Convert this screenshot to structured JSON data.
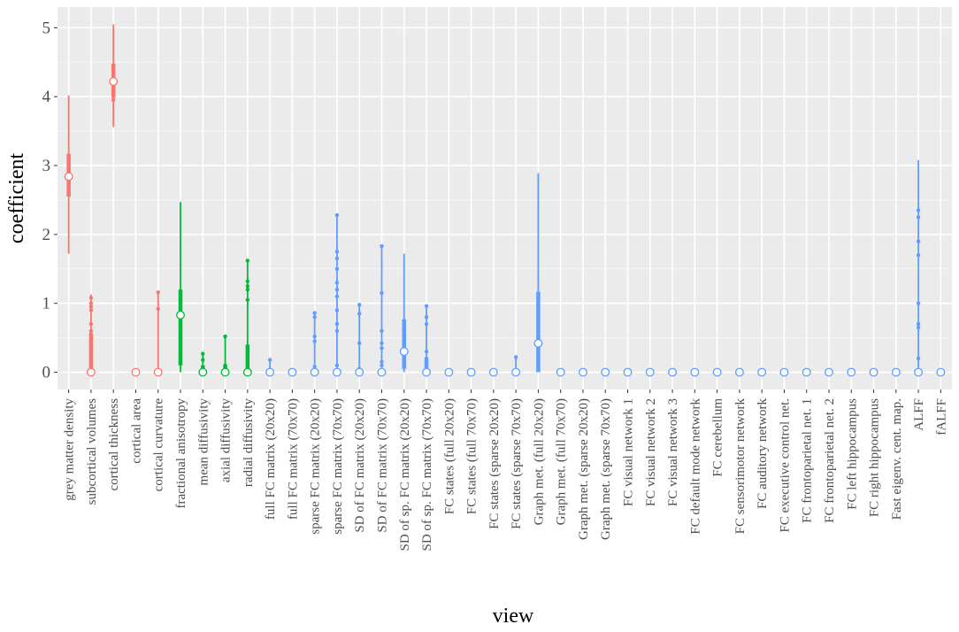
{
  "chart_data": {
    "type": "pointrange",
    "x_label": "view",
    "y_label": "coefficient",
    "ylim": [
      -0.25,
      5.3
    ],
    "yticks": [
      0,
      1,
      2,
      3,
      4,
      5
    ],
    "grid": true,
    "categories": [
      "grey matter density",
      "subcortical volumes",
      "cortical thickness",
      "cortical area",
      "cortical curvature",
      "fractional anisotropy",
      "mean diffusivity",
      "axial diffusivity",
      "radial diffusivity",
      "full FC matrix (20x20)",
      "full FC matrix (70x70)",
      "sparse FC matrix (20x20)",
      "sparse FC matrix (70x70)",
      "SD of FC matrix (20x20)",
      "SD of FC matrix (70x70)",
      "SD of sp. FC matrix (20x20)",
      "SD of sp. FC matrix (70x70)",
      "FC states (full 20x20)",
      "FC states (full 70x70)",
      "FC states (sparse 20x20)",
      "FC states (sparse 70x70)",
      "Graph met. (full 20x20)",
      "Graph met. (full 70x70)",
      "Graph met. (sparse 20x20)",
      "Graph met. (sparse 70x70)",
      "FC visual network 1",
      "FC visual network 2",
      "FC visual network 3",
      "FC default mode network",
      "FC cerebellum",
      "FC sensorimotor network",
      "FC auditory network",
      "FC executive control net.",
      "FC frontoparietal net. 1",
      "FC frontoparietal net. 2",
      "FC left hippocampus",
      "FC right hippocampus",
      "Fast eigenv. cent. map.",
      "ALFF",
      "fALFF"
    ],
    "ranges": [
      {
        "color": "#F8766D",
        "min": 1.72,
        "q1": 2.55,
        "median": 2.84,
        "q3": 3.17,
        "max": 4.02,
        "dots": [
          2.6,
          2.75,
          2.9,
          3.0,
          3.1
        ]
      },
      {
        "color": "#F8766D",
        "min": 0,
        "q1": 0,
        "median": 0,
        "q3": 0.55,
        "max": 1.13,
        "dots": [
          0.05,
          0.15,
          0.35,
          0.45,
          0.55,
          0.6,
          0.7,
          0.9,
          0.95,
          1.0,
          1.08
        ]
      },
      {
        "color": "#F8766D",
        "min": 3.56,
        "q1": 3.98,
        "median": 4.22,
        "q3": 4.48,
        "max": 5.05,
        "dots": [
          3.95,
          4.05,
          4.15,
          4.35,
          4.45
        ]
      },
      {
        "color": "#F8766D",
        "min": 0,
        "q1": 0,
        "median": 0,
        "q3": 0,
        "max": 0,
        "dots": []
      },
      {
        "color": "#F8766D",
        "min": 0,
        "q1": 0,
        "median": 0,
        "q3": 0,
        "max": 1.16,
        "dots": [
          0.92,
          1.16
        ]
      },
      {
        "color": "#00BA38",
        "min": 0,
        "q1": 0.1,
        "median": 0.83,
        "q3": 1.2,
        "max": 2.47,
        "dots": []
      },
      {
        "color": "#00BA38",
        "min": 0,
        "q1": 0,
        "median": 0,
        "q3": 0.1,
        "max": 0.27,
        "dots": [
          0.18,
          0.27
        ]
      },
      {
        "color": "#00BA38",
        "min": 0,
        "q1": 0,
        "median": 0,
        "q3": 0.1,
        "max": 0.52,
        "dots": [
          0.1,
          0.52
        ]
      },
      {
        "color": "#00BA38",
        "min": 0,
        "q1": 0,
        "median": 0,
        "q3": 0.4,
        "max": 1.62,
        "dots": [
          1.05,
          1.2,
          1.25,
          1.32,
          1.62
        ]
      },
      {
        "color": "#619CFF",
        "min": 0,
        "q1": 0,
        "median": 0,
        "q3": 0,
        "max": 0.18,
        "dots": [
          0.18
        ]
      },
      {
        "color": "#619CFF",
        "min": 0,
        "q1": 0,
        "median": 0,
        "q3": 0,
        "max": 0,
        "dots": []
      },
      {
        "color": "#619CFF",
        "min": 0,
        "q1": 0,
        "median": 0,
        "q3": 0,
        "max": 0.86,
        "dots": [
          0.08,
          0.45,
          0.52,
          0.8,
          0.86
        ]
      },
      {
        "color": "#619CFF",
        "min": 0,
        "q1": 0,
        "median": 0,
        "q3": 0,
        "max": 2.28,
        "dots": [
          0.1,
          0.6,
          0.7,
          0.9,
          1.1,
          1.2,
          1.3,
          1.5,
          1.65,
          1.75,
          2.28
        ]
      },
      {
        "color": "#619CFF",
        "min": 0,
        "q1": 0,
        "median": 0,
        "q3": 0,
        "max": 0.98,
        "dots": [
          0.05,
          0.42,
          0.85,
          0.98
        ]
      },
      {
        "color": "#619CFF",
        "min": 0,
        "q1": 0,
        "median": 0,
        "q3": 0,
        "max": 1.83,
        "dots": [
          0.1,
          0.15,
          0.35,
          0.42,
          0.6,
          1.15,
          1.83
        ]
      },
      {
        "color": "#619CFF",
        "min": 0,
        "q1": 0.05,
        "median": 0.3,
        "q3": 0.77,
        "max": 1.72,
        "dots": []
      },
      {
        "color": "#619CFF",
        "min": 0,
        "q1": 0,
        "median": 0,
        "q3": 0.2,
        "max": 0.96,
        "dots": [
          0.1,
          0.2,
          0.3,
          0.7,
          0.8,
          0.96
        ]
      },
      {
        "color": "#619CFF",
        "min": 0,
        "q1": 0,
        "median": 0,
        "q3": 0,
        "max": 0,
        "dots": []
      },
      {
        "color": "#619CFF",
        "min": 0,
        "q1": 0,
        "median": 0,
        "q3": 0,
        "max": 0,
        "dots": []
      },
      {
        "color": "#619CFF",
        "min": 0,
        "q1": 0,
        "median": 0,
        "q3": 0,
        "max": 0,
        "dots": []
      },
      {
        "color": "#619CFF",
        "min": 0,
        "q1": 0,
        "median": 0,
        "q3": 0,
        "max": 0.22,
        "dots": [
          0.22
        ]
      },
      {
        "color": "#619CFF",
        "min": 0,
        "q1": 0,
        "median": 0.42,
        "q3": 1.17,
        "max": 2.89,
        "dots": []
      },
      {
        "color": "#619CFF",
        "min": 0,
        "q1": 0,
        "median": 0,
        "q3": 0,
        "max": 0,
        "dots": []
      },
      {
        "color": "#619CFF",
        "min": 0,
        "q1": 0,
        "median": 0,
        "q3": 0,
        "max": 0,
        "dots": []
      },
      {
        "color": "#619CFF",
        "min": 0,
        "q1": 0,
        "median": 0,
        "q3": 0,
        "max": 0,
        "dots": []
      },
      {
        "color": "#619CFF",
        "min": 0,
        "q1": 0,
        "median": 0,
        "q3": 0,
        "max": 0,
        "dots": []
      },
      {
        "color": "#619CFF",
        "min": 0,
        "q1": 0,
        "median": 0,
        "q3": 0,
        "max": 0,
        "dots": []
      },
      {
        "color": "#619CFF",
        "min": 0,
        "q1": 0,
        "median": 0,
        "q3": 0,
        "max": 0,
        "dots": []
      },
      {
        "color": "#619CFF",
        "min": 0,
        "q1": 0,
        "median": 0,
        "q3": 0,
        "max": 0,
        "dots": []
      },
      {
        "color": "#619CFF",
        "min": 0,
        "q1": 0,
        "median": 0,
        "q3": 0,
        "max": 0,
        "dots": []
      },
      {
        "color": "#619CFF",
        "min": 0,
        "q1": 0,
        "median": 0,
        "q3": 0,
        "max": 0,
        "dots": []
      },
      {
        "color": "#619CFF",
        "min": 0,
        "q1": 0,
        "median": 0,
        "q3": 0,
        "max": 0,
        "dots": []
      },
      {
        "color": "#619CFF",
        "min": 0,
        "q1": 0,
        "median": 0,
        "q3": 0,
        "max": 0,
        "dots": []
      },
      {
        "color": "#619CFF",
        "min": 0,
        "q1": 0,
        "median": 0,
        "q3": 0,
        "max": 0,
        "dots": []
      },
      {
        "color": "#619CFF",
        "min": 0,
        "q1": 0,
        "median": 0,
        "q3": 0,
        "max": 0,
        "dots": []
      },
      {
        "color": "#619CFF",
        "min": 0,
        "q1": 0,
        "median": 0,
        "q3": 0,
        "max": 0,
        "dots": []
      },
      {
        "color": "#619CFF",
        "min": 0,
        "q1": 0,
        "median": 0,
        "q3": 0,
        "max": 0,
        "dots": []
      },
      {
        "color": "#619CFF",
        "min": 0,
        "q1": 0,
        "median": 0,
        "q3": 0,
        "max": 0,
        "dots": []
      },
      {
        "color": "#619CFF",
        "min": 0,
        "q1": 0,
        "median": 0,
        "q3": 0,
        "max": 3.08,
        "dots": [
          0.2,
          0.65,
          0.7,
          1.0,
          1.7,
          1.9,
          2.25,
          2.35
        ]
      },
      {
        "color": "#619CFF",
        "min": 0,
        "q1": 0,
        "median": 0,
        "q3": 0,
        "max": 0,
        "dots": []
      }
    ]
  }
}
